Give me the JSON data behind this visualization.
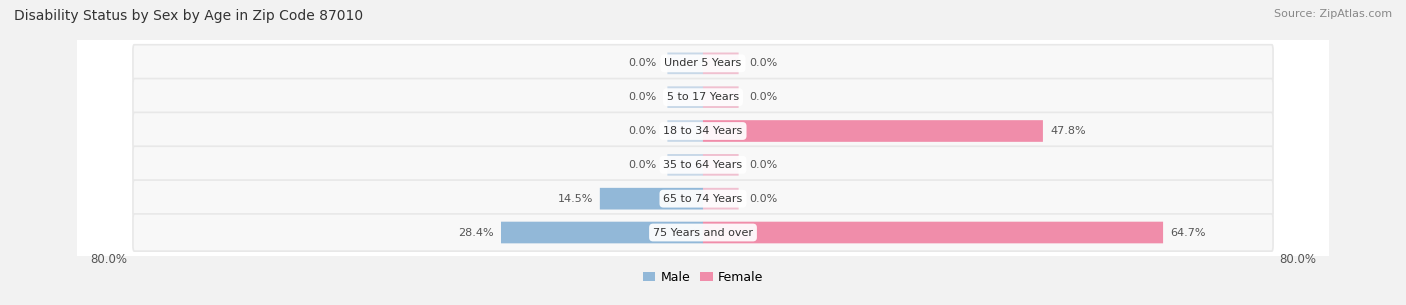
{
  "title": "Disability Status by Sex by Age in Zip Code 87010",
  "source": "Source: ZipAtlas.com",
  "categories": [
    "Under 5 Years",
    "5 to 17 Years",
    "18 to 34 Years",
    "35 to 64 Years",
    "65 to 74 Years",
    "75 Years and over"
  ],
  "male_values": [
    0.0,
    0.0,
    0.0,
    0.0,
    14.5,
    28.4
  ],
  "female_values": [
    0.0,
    0.0,
    47.8,
    0.0,
    0.0,
    64.7
  ],
  "male_color": "#92b8d8",
  "female_color": "#f08daa",
  "male_label": "Male",
  "female_label": "Female",
  "axis_max": 80.0,
  "bar_height": 0.62,
  "row_bg_color": "#e8e8e8",
  "row_inner_color": "#f8f8f8",
  "label_color": "#555555",
  "title_color": "#333333",
  "center_label_color": "#333333",
  "stub_size": 5.0
}
